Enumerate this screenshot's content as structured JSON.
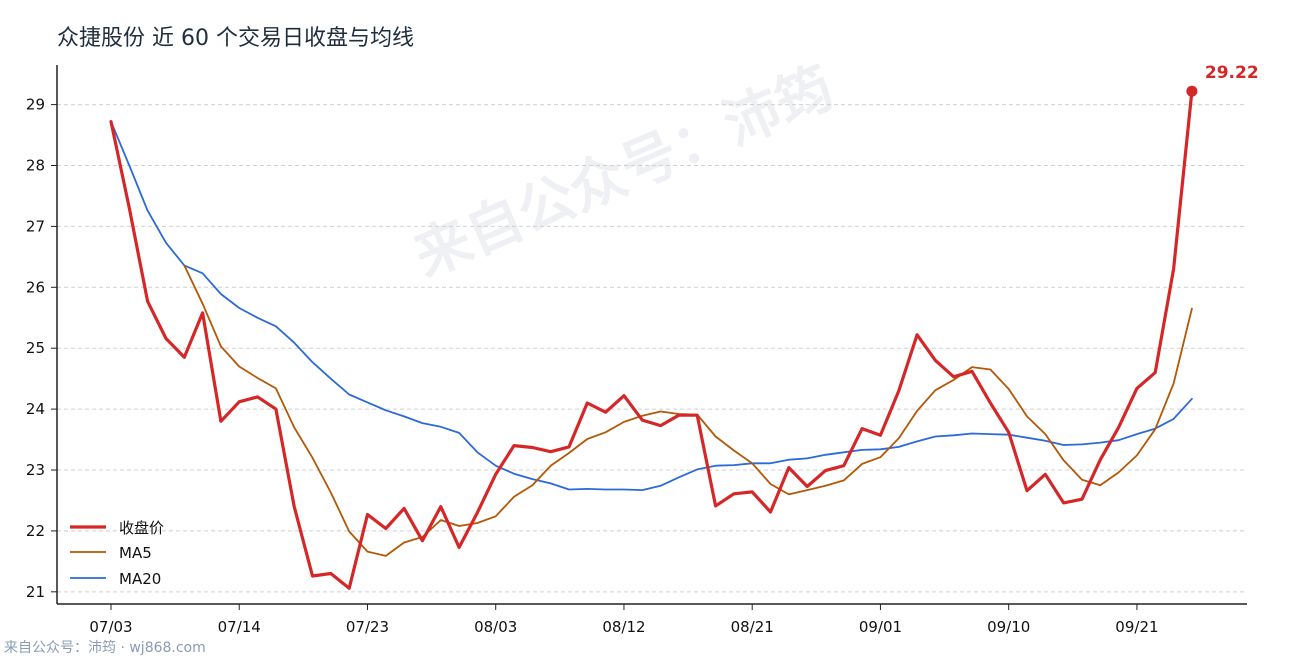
{
  "title": "众捷股份 近 60 个交易日收盘与均线",
  "watermark": "来自公众号：沛筠",
  "footer": "来自公众号：沛筠 · wj868.com",
  "colors": {
    "close": "#d62728",
    "ma5": "#b35806",
    "ma20": "#2b6ad8"
  },
  "chart_data": {
    "type": "line",
    "title": "众捷股份 近 60 个交易日收盘与均线",
    "xlabel": "",
    "ylabel": "",
    "x_tick_labels": [
      "07/03",
      "07/14",
      "07/23",
      "08/03",
      "08/12",
      "08/21",
      "09/01",
      "09/10",
      "09/21"
    ],
    "x_tick_indices": [
      0,
      7,
      14,
      21,
      28,
      35,
      42,
      49,
      56
    ],
    "y_ticks": [
      21,
      22,
      23,
      24,
      25,
      26,
      27,
      28,
      29
    ],
    "ylim": [
      20.8,
      29.65
    ],
    "x_count": 60,
    "grid": "horizontal dashed",
    "legend": "bottom-left",
    "last_value_label": "29.22",
    "series": [
      {
        "name": "收盘价",
        "color": "#d62728",
        "values": [
          28.72,
          27.3,
          25.77,
          25.16,
          24.85,
          25.58,
          23.8,
          24.12,
          24.2,
          24.0,
          22.4,
          21.26,
          21.3,
          21.06,
          22.27,
          22.04,
          22.37,
          21.84,
          22.4,
          21.73,
          22.3,
          22.93,
          23.4,
          23.37,
          23.3,
          23.38,
          24.1,
          23.95,
          24.22,
          23.82,
          23.73,
          23.9,
          23.9,
          22.41,
          22.61,
          22.64,
          22.31,
          23.04,
          22.73,
          22.99,
          23.07,
          23.68,
          23.57,
          24.3,
          25.22,
          24.8,
          24.53,
          24.62,
          24.1,
          23.62,
          22.66,
          22.93,
          22.46,
          22.52,
          23.17,
          23.7,
          24.34,
          24.6,
          26.3,
          29.22
        ]
      },
      {
        "name": "MA5",
        "color": "#b35806",
        "values": [
          null,
          null,
          null,
          null,
          26.36,
          25.73,
          25.03,
          24.7,
          24.51,
          24.34,
          23.7,
          23.2,
          22.63,
          21.99,
          21.66,
          21.59,
          21.81,
          21.9,
          22.18,
          22.08,
          22.13,
          22.24,
          22.56,
          22.75,
          23.07,
          23.28,
          23.51,
          23.62,
          23.79,
          23.89,
          23.96,
          23.92,
          23.91,
          23.55,
          23.32,
          23.11,
          22.77,
          22.6,
          22.67,
          22.74,
          22.83,
          23.1,
          23.21,
          23.52,
          23.97,
          24.31,
          24.48,
          24.69,
          24.65,
          24.33,
          23.88,
          23.59,
          23.16,
          22.84,
          22.75,
          22.96,
          23.24,
          23.67,
          24.42,
          25.65
        ]
      },
      {
        "name": "MA20",
        "color": "#2b6ad8",
        "values": [
          28.72,
          28.0,
          27.26,
          26.73,
          26.36,
          26.23,
          25.89,
          25.66,
          25.5,
          25.36,
          25.09,
          24.77,
          24.5,
          24.24,
          24.11,
          23.98,
          23.88,
          23.77,
          23.71,
          23.61,
          23.29,
          23.07,
          22.94,
          22.85,
          22.78,
          22.68,
          22.69,
          22.68,
          22.68,
          22.67,
          22.74,
          22.88,
          23.01,
          23.07,
          23.08,
          23.11,
          23.11,
          23.17,
          23.19,
          23.25,
          23.29,
          23.33,
          23.34,
          23.38,
          23.47,
          23.55,
          23.57,
          23.6,
          23.59,
          23.58,
          23.53,
          23.48,
          23.41,
          23.42,
          23.45,
          23.49,
          23.59,
          23.68,
          23.84,
          24.17
        ]
      }
    ]
  }
}
